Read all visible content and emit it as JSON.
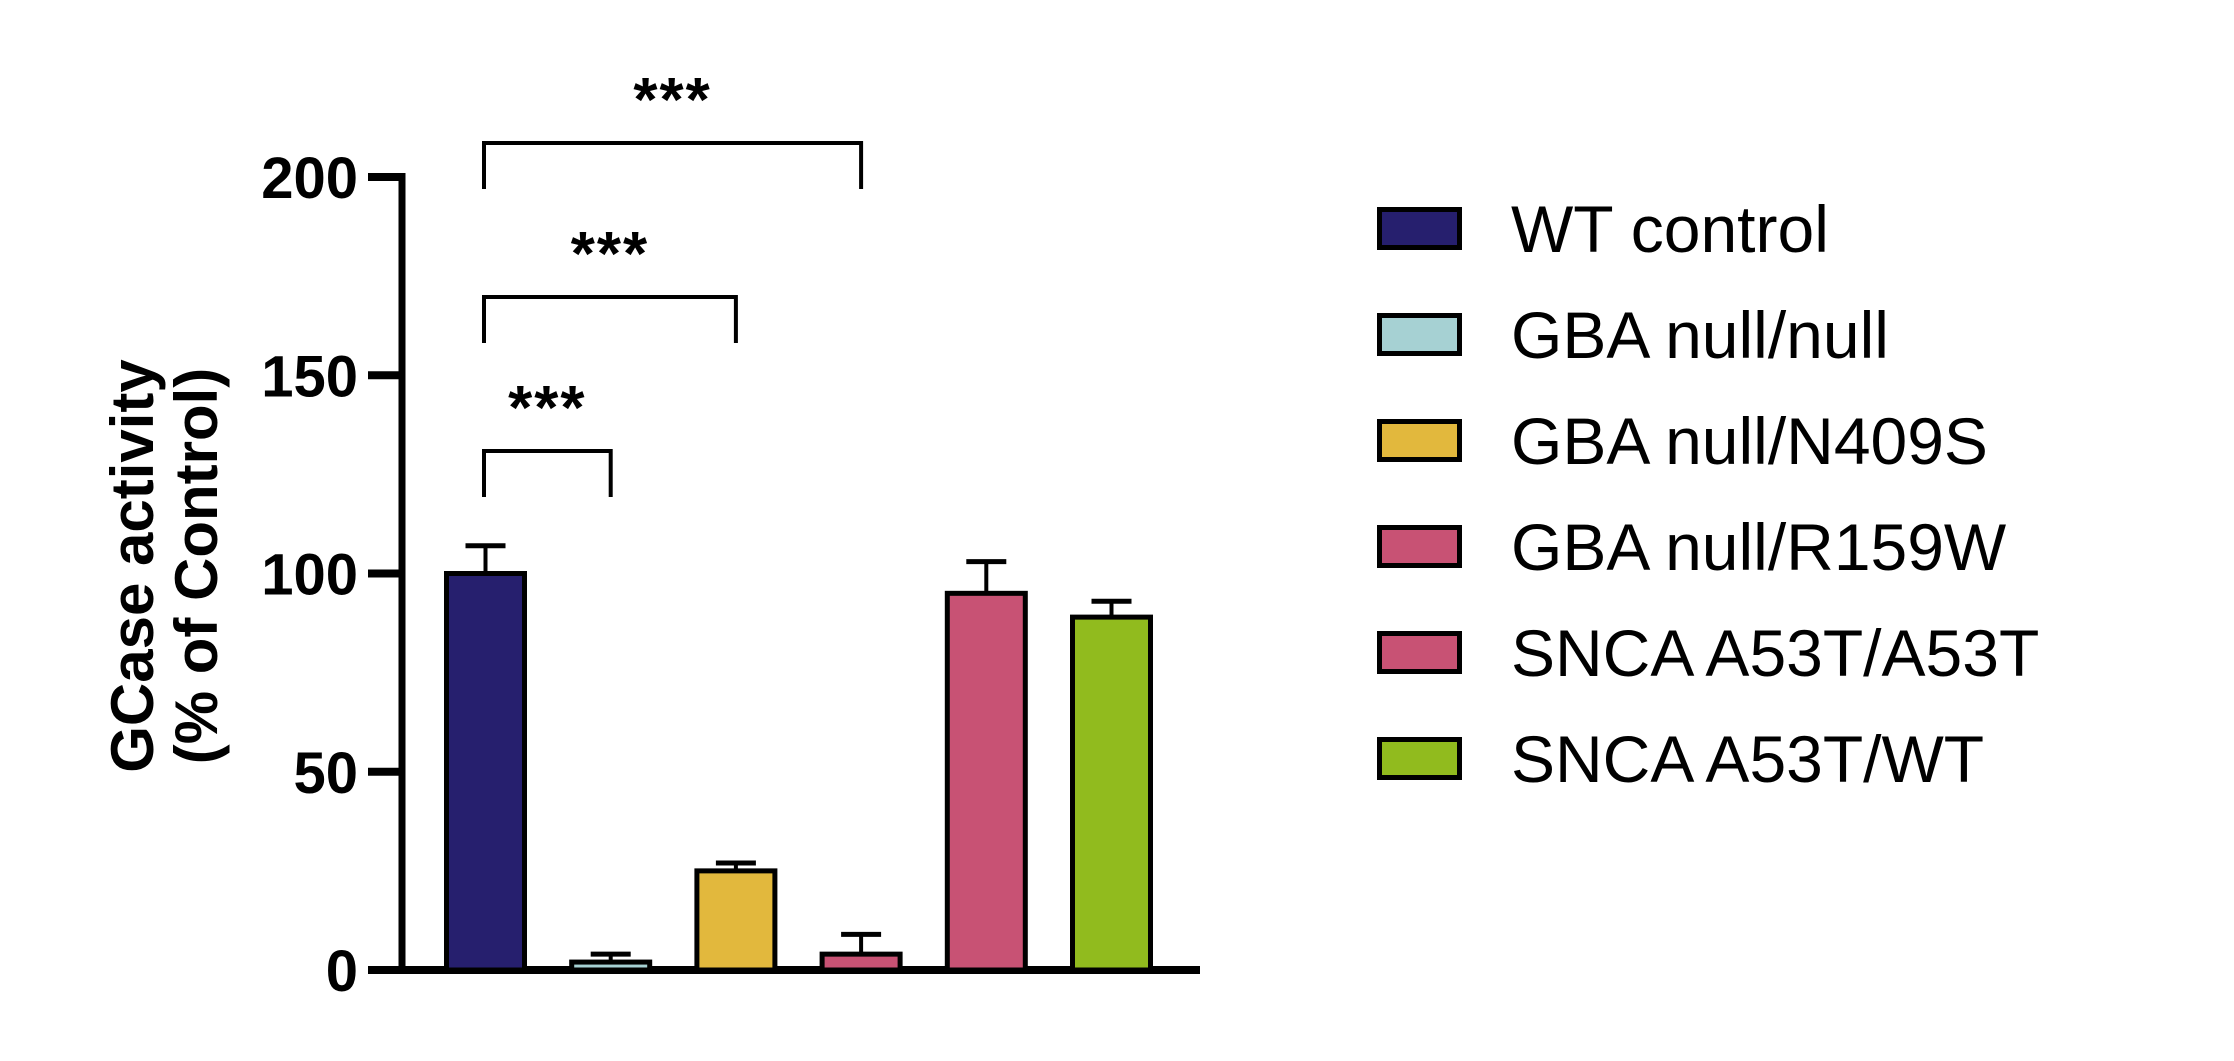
{
  "chart_data": {
    "type": "bar",
    "title": "",
    "xlabel": "",
    "ylabel": "GCase activity\n(% of Control)",
    "ylabel_lines": [
      "GCase activity",
      "(% of Control)"
    ],
    "ylim": [
      0,
      200
    ],
    "yticks": [
      0,
      50,
      100,
      150,
      200
    ],
    "grid": false,
    "legend_position": "right",
    "categories": [
      "WT control",
      "GBA null/null",
      "GBA null/N409S",
      "GBA null/R159W",
      "SNCA A53T/A53T",
      "SNCA A53T/WT"
    ],
    "values": [
      100,
      2,
      25,
      4,
      95,
      89
    ],
    "error_upper": [
      107,
      4,
      27,
      9,
      103,
      93
    ],
    "colors": [
      "#261F6E",
      "#A6D1D3",
      "#E2B83D",
      "#C85274",
      "#C85274",
      "#91BB1E"
    ],
    "annotations": [
      {
        "from": "WT control",
        "to": "GBA null/null",
        "label": "***"
      },
      {
        "from": "WT control",
        "to": "GBA null/N409S",
        "label": "***"
      },
      {
        "from": "WT control",
        "to": "GBA null/R159W",
        "label": "***"
      }
    ]
  },
  "legend": {
    "items": [
      {
        "label": "WT control",
        "color": "#261F6E"
      },
      {
        "label": "GBA null/null",
        "color": "#A6D1D3"
      },
      {
        "label": "GBA null/N409S",
        "color": "#E2B83D"
      },
      {
        "label": "GBA null/R159W",
        "color": "#C85274"
      },
      {
        "label": "SNCA A53T/A53T",
        "color": "#C85274"
      },
      {
        "label": "SNCA A53T/WT",
        "color": "#91BB1E"
      }
    ]
  }
}
